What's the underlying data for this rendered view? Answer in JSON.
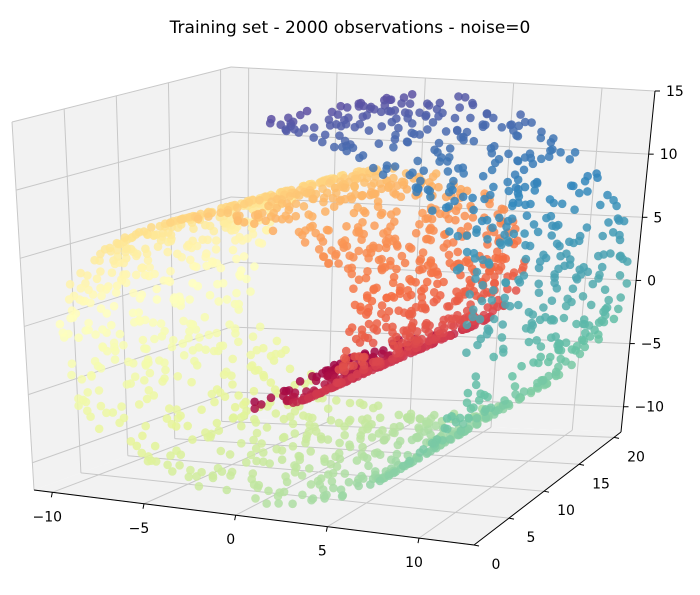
{
  "chart_data": {
    "type": "scatter",
    "title": "Training set - 2000 observations - noise=0",
    "xlabel": "",
    "ylabel": "",
    "zlabel": "",
    "n_points": 2000,
    "noise": 0,
    "x_ticks": [
      "−10",
      "−5",
      "0",
      "5",
      "10"
    ],
    "y_ticks": [
      "0",
      "5",
      "10",
      "15",
      "20"
    ],
    "z_ticks": [
      "−10",
      "−5",
      "0",
      "5",
      "10",
      "15"
    ],
    "xlim": [
      -11,
      13
    ],
    "ylim": [
      0,
      21
    ],
    "zlim": [
      -12,
      15
    ],
    "grid": true,
    "legend": "none",
    "shape": "swiss roll",
    "colormap": "Spectral",
    "colormap_stops": [
      "#9e0142",
      "#d53e4f",
      "#f46d43",
      "#fdae61",
      "#fee08b",
      "#ffffbf",
      "#e6f598",
      "#abdda4",
      "#66c2a5",
      "#3288bd",
      "#5e4fa2"
    ],
    "pane_color": "#f2f2f2",
    "grid_color": "#c8c8c8"
  }
}
